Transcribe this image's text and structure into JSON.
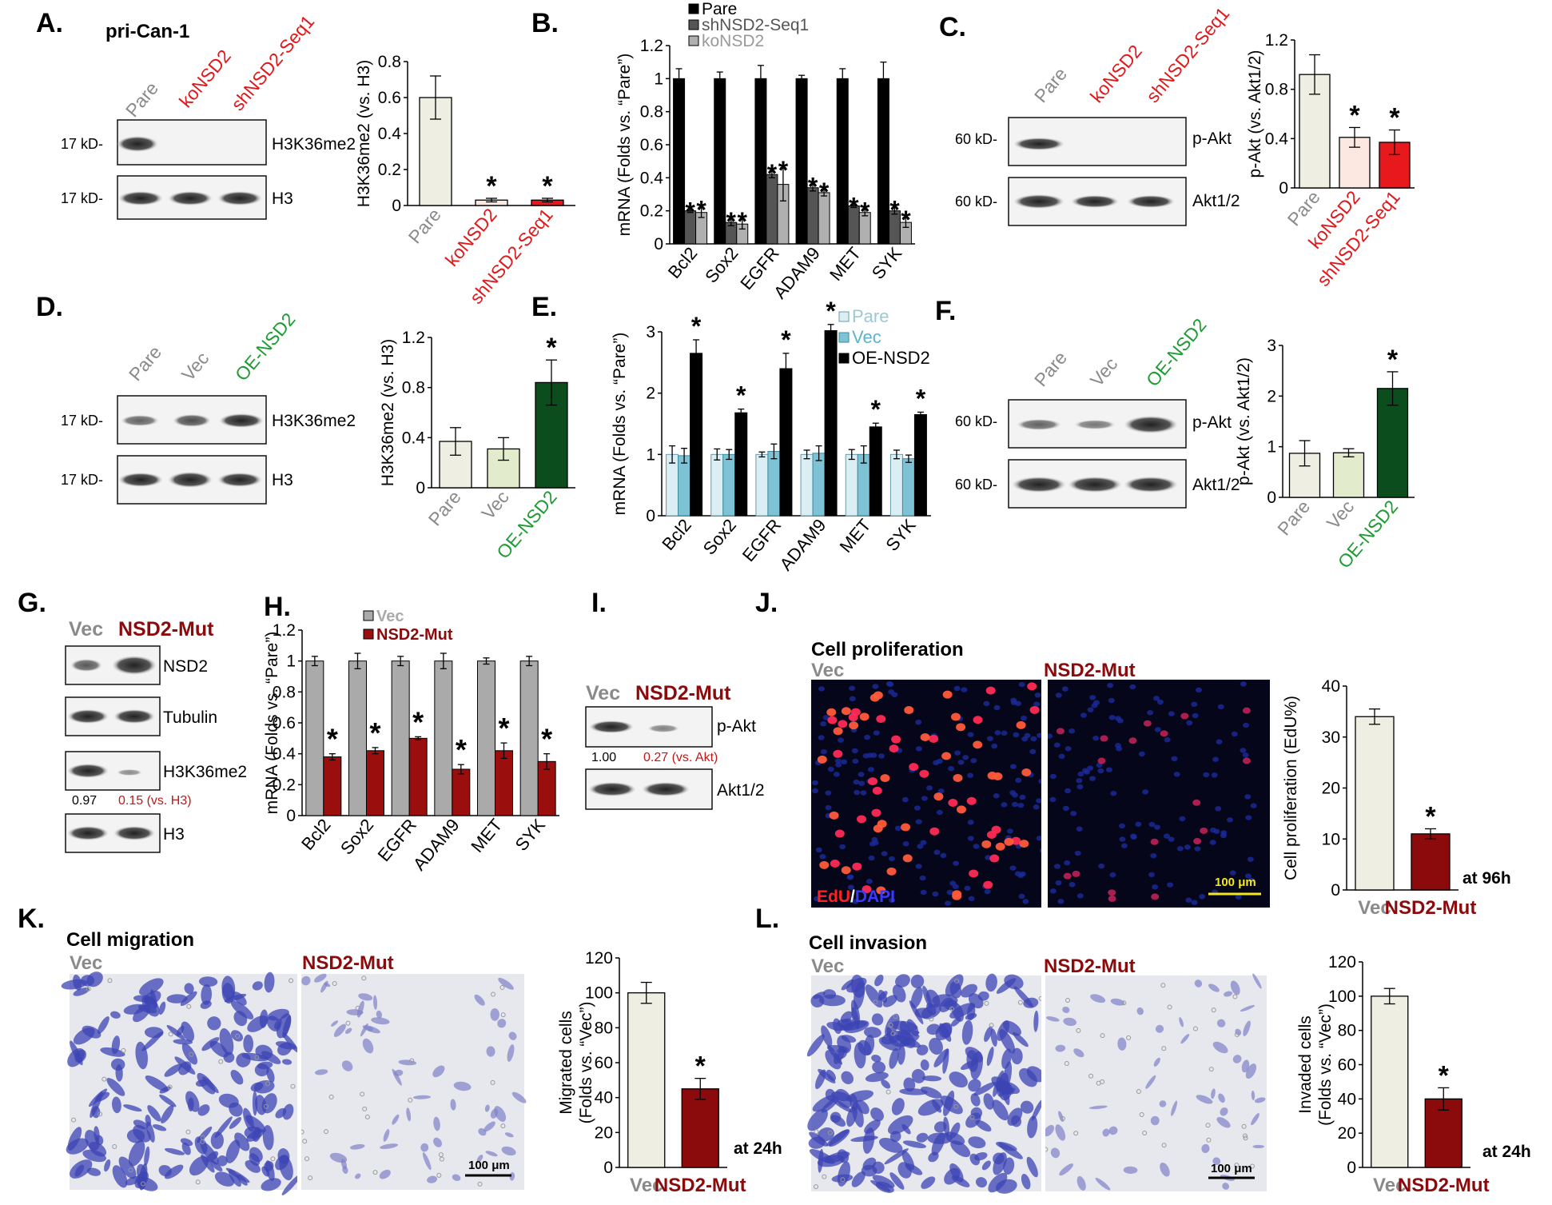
{
  "figure": {
    "colors": {
      "pare": "#efeee2",
      "ko": "#fce8e0",
      "red": "#e8191c",
      "darkred": "#8b0a0c",
      "green": "#0b4d1c",
      "lightgreen": "#e2ebcc",
      "grey": "#8a8a8a",
      "redtext": "#e0191c",
      "greentext": "#1e9b34"
    },
    "panelA": {
      "letter": "A.",
      "title": "pri-Can-1",
      "lanes": [
        "Pare",
        "koNSD2",
        "shNSD2-Seq1"
      ],
      "kd": [
        "17 kD-",
        "17 kD-"
      ],
      "bands": [
        "H3K36me2",
        "H3"
      ]
    },
    "panelB": {
      "letter": "B."
    },
    "panelC": {
      "letter": "C.",
      "lanes": [
        "Pare",
        "koNSD2",
        "shNSD2-Seq1"
      ],
      "kd": [
        "60 kD-",
        "60 kD-"
      ],
      "bands": [
        "p-Akt",
        "Akt1/2"
      ]
    },
    "panelD": {
      "letter": "D.",
      "lanes": [
        "Pare",
        "Vec",
        "OE-NSD2"
      ],
      "kd": [
        "17 kD-",
        "17 kD-"
      ],
      "bands": [
        "H3K36me2",
        "H3"
      ]
    },
    "panelE": {
      "letter": "E."
    },
    "panelF": {
      "letter": "F.",
      "lanes": [
        "Pare",
        "Vec",
        "OE-NSD2"
      ],
      "kd": [
        "60 kD-",
        "60 kD-"
      ],
      "bands": [
        "p-Akt",
        "Akt1/2"
      ]
    },
    "panelG": {
      "letter": "G.",
      "lanes": [
        "Vec",
        "NSD2-Mut"
      ],
      "bands": [
        "NSD2",
        "Tubulin",
        "H3K36me2",
        "H3"
      ],
      "quant": [
        "0.97",
        "0.15 (vs. H3)"
      ]
    },
    "panelH": {
      "letter": "H."
    },
    "panelI": {
      "letter": "I.",
      "lanes": [
        "Vec",
        "NSD2-Mut"
      ],
      "bands": [
        "p-Akt",
        "Akt1/2"
      ],
      "quant": [
        "1.00",
        "0.27 (vs. Akt)"
      ]
    },
    "panelJ": {
      "letter": "J.",
      "title": "Cell proliferation",
      "img_labels": [
        "Vec",
        "NSD2-Mut"
      ],
      "stain_edu": "EdU",
      "stain_slash": "/",
      "stain_dapi": "DAPI",
      "scalebar": "100 μm",
      "timepoint": "at 96h"
    },
    "panelK": {
      "letter": "K.",
      "title": "Cell migration",
      "img_labels": [
        "Vec",
        "NSD2-Mut"
      ],
      "scalebar": "100 μm",
      "timepoint": "at 24h"
    },
    "panelL": {
      "letter": "L.",
      "title": "Cell invasion",
      "img_labels": [
        "Vec",
        "NSD2-Mut"
      ],
      "scalebar": "100 μm",
      "timepoint": "at 24h"
    }
  },
  "chart_data": [
    {
      "id": "A",
      "type": "bar",
      "categories": [
        "Pare",
        "koNSD2",
        "shNSD2-Seq1"
      ],
      "values": [
        0.6,
        0.03,
        0.03
      ],
      "errors": [
        0.12,
        0.01,
        0.01
      ],
      "significant": [
        false,
        true,
        true
      ],
      "ylabel": "H3K36me2 (vs. H3)",
      "ylim": [
        0,
        0.8
      ],
      "yticks": [
        "0",
        "0.2",
        "0.4",
        "0.6",
        "0.8"
      ]
    },
    {
      "id": "B",
      "type": "bar",
      "categories": [
        "Bcl2",
        "Sox2",
        "EGFR",
        "ADAM9",
        "MET",
        "SYK"
      ],
      "series": [
        {
          "name": "Pare",
          "values": [
            1,
            1,
            1,
            1,
            1,
            1
          ],
          "errors": [
            0.06,
            0.04,
            0.08,
            0.02,
            0.06,
            0.1
          ]
        },
        {
          "name": "shNSD2-Seq1",
          "values": [
            0.2,
            0.13,
            0.42,
            0.34,
            0.23,
            0.2
          ],
          "errors": [
            0.01,
            0.02,
            0.02,
            0.02,
            0.01,
            0.02
          ]
        },
        {
          "name": "koNSD2",
          "values": [
            0.19,
            0.12,
            0.36,
            0.31,
            0.19,
            0.13
          ],
          "errors": [
            0.03,
            0.03,
            0.1,
            0.02,
            0.02,
            0.03
          ]
        }
      ],
      "ylabel": "mRNA (Folds vs. “Pare”)",
      "ylim": [
        0,
        1.2
      ],
      "yticks": [
        "0",
        "0.2",
        "0.4",
        "0.6",
        "0.8",
        "1",
        "1.2"
      ]
    },
    {
      "id": "C",
      "type": "bar",
      "categories": [
        "Pare",
        "koNSD2",
        "shNSD2-Seq1"
      ],
      "values": [
        0.92,
        0.41,
        0.37
      ],
      "errors": [
        0.16,
        0.08,
        0.1
      ],
      "significant": [
        false,
        true,
        true
      ],
      "ylabel": "p-Akt (vs. Akt1/2)",
      "ylim": [
        0,
        1.2
      ],
      "yticks": [
        "0",
        "0.4",
        "0.8",
        "1.2"
      ]
    },
    {
      "id": "D",
      "type": "bar",
      "categories": [
        "Pare",
        "Vec",
        "OE-NSD2"
      ],
      "values": [
        0.37,
        0.31,
        0.84
      ],
      "errors": [
        0.11,
        0.09,
        0.18
      ],
      "significant": [
        false,
        false,
        true
      ],
      "ylabel": "H3K36me2 (vs. H3)",
      "ylim": [
        0,
        1.2
      ],
      "yticks": [
        "0",
        "0.4",
        "0.8",
        "1.2"
      ]
    },
    {
      "id": "E",
      "type": "bar",
      "categories": [
        "Bcl2",
        "Sox2",
        "EGFR",
        "ADAM9",
        "MET",
        "SYK"
      ],
      "series": [
        {
          "name": "Pare",
          "values": [
            1,
            1,
            1,
            1,
            1,
            1
          ],
          "errors": [
            0.14,
            0.09,
            0.04,
            0.07,
            0.08,
            0.07
          ]
        },
        {
          "name": "Vec",
          "values": [
            0.98,
            1,
            1.05,
            1.02,
            1,
            0.93
          ],
          "errors": [
            0.12,
            0.08,
            0.12,
            0.12,
            0.14,
            0.06
          ]
        },
        {
          "name": "OE-NSD2",
          "values": [
            2.65,
            1.68,
            2.4,
            3.02,
            1.45,
            1.65
          ],
          "errors": [
            0.22,
            0.06,
            0.25,
            0.1,
            0.06,
            0.04
          ]
        }
      ],
      "ylabel": "mRNA (Folds vs. “Pare”)",
      "ylim": [
        0,
        3
      ],
      "yticks": [
        "0",
        "1",
        "2",
        "3"
      ]
    },
    {
      "id": "F",
      "type": "bar",
      "categories": [
        "Pare",
        "Vec",
        "OE-NSD2"
      ],
      "values": [
        0.87,
        0.88,
        2.15
      ],
      "errors": [
        0.25,
        0.08,
        0.33
      ],
      "significant": [
        false,
        false,
        true
      ],
      "ylabel": "p-Akt (vs. Akt1/2)",
      "ylim": [
        0,
        3
      ],
      "yticks": [
        "0",
        "1",
        "2",
        "3"
      ]
    },
    {
      "id": "H",
      "type": "bar",
      "categories": [
        "Bcl2",
        "Sox2",
        "EGFR",
        "ADAM9",
        "MET",
        "SYK"
      ],
      "series": [
        {
          "name": "Vec",
          "values": [
            1,
            1,
            1,
            1,
            1,
            1
          ],
          "errors": [
            0.03,
            0.05,
            0.03,
            0.05,
            0.02,
            0.03
          ]
        },
        {
          "name": "NSD2-Mut",
          "values": [
            0.38,
            0.42,
            0.5,
            0.3,
            0.42,
            0.35
          ],
          "errors": [
            0.02,
            0.02,
            0.01,
            0.03,
            0.05,
            0.05
          ]
        }
      ],
      "ylabel": "mRNA (Folds vs. “Pare”)",
      "ylim": [
        0,
        1.2
      ],
      "yticks": [
        "0",
        "0.2",
        "0.4",
        "0.6",
        "0.8",
        "1",
        "1.2"
      ]
    },
    {
      "id": "J",
      "type": "bar",
      "categories": [
        "Vec",
        "NSD2-Mut"
      ],
      "values": [
        34,
        11
      ],
      "errors": [
        1.5,
        1
      ],
      "significant": [
        false,
        true
      ],
      "ylabel": "Cell proliferation (EdU%)",
      "ylim": [
        0,
        40
      ],
      "yticks": [
        "0",
        "10",
        "20",
        "30",
        "40"
      ]
    },
    {
      "id": "K",
      "type": "bar",
      "categories": [
        "Vec",
        "NSD2-Mut"
      ],
      "values": [
        100,
        45
      ],
      "errors": [
        6,
        6
      ],
      "significant": [
        false,
        true
      ],
      "ylabel": "Migrated cells",
      "ylabel2": "(Folds vs. “Vec”)",
      "ylim": [
        0,
        120
      ],
      "yticks": [
        "0",
        "20",
        "40",
        "60",
        "80",
        "100",
        "120"
      ]
    },
    {
      "id": "L",
      "type": "bar",
      "categories": [
        "Vec",
        "NSD2-Mut"
      ],
      "values": [
        100,
        40
      ],
      "errors": [
        4.5,
        6.5
      ],
      "significant": [
        false,
        true
      ],
      "ylabel": "Invaded cells",
      "ylabel2": "(Folds vs. “Vec”)",
      "ylim": [
        0,
        120
      ],
      "yticks": [
        "0",
        "20",
        "40",
        "60",
        "80",
        "100",
        "120"
      ]
    }
  ]
}
